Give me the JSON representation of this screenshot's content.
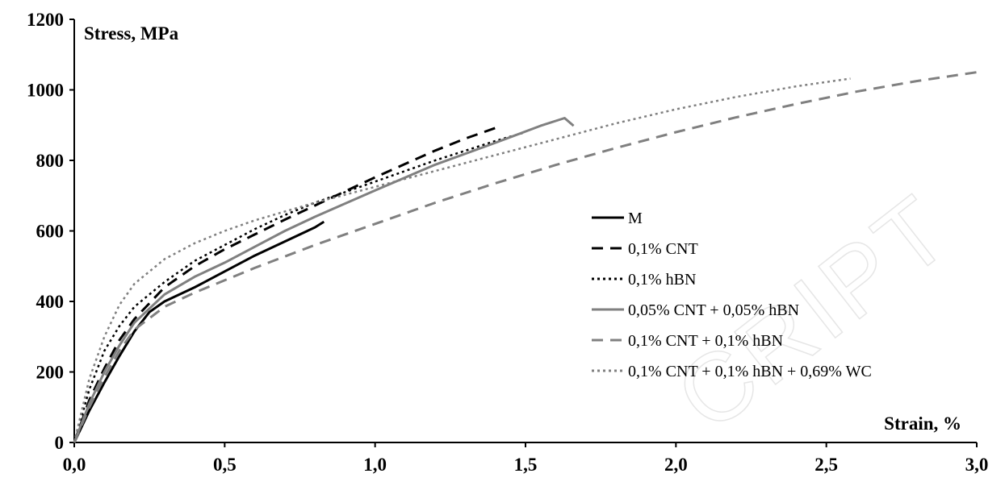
{
  "watermark": "CRIPT",
  "chart_data": {
    "type": "line",
    "title": "",
    "xlabel": "Strain, %",
    "ylabel": "Stress, MPa",
    "xlim": [
      0,
      3
    ],
    "ylim": [
      0,
      1200
    ],
    "xticks": [
      {
        "value": 0,
        "label": "0,0"
      },
      {
        "value": 0.5,
        "label": "0,5"
      },
      {
        "value": 1.0,
        "label": "1,0"
      },
      {
        "value": 1.5,
        "label": "1,5"
      },
      {
        "value": 2.0,
        "label": "2,0"
      },
      {
        "value": 2.5,
        "label": "2,5"
      },
      {
        "value": 3.0,
        "label": "3,0"
      }
    ],
    "yticks": [
      {
        "value": 0,
        "label": "0"
      },
      {
        "value": 200,
        "label": "200"
      },
      {
        "value": 400,
        "label": "400"
      },
      {
        "value": 600,
        "label": "600"
      },
      {
        "value": 800,
        "label": "800"
      },
      {
        "value": 1000,
        "label": "1000"
      },
      {
        "value": 1200,
        "label": "1200"
      }
    ],
    "grid": false,
    "legend_position": "right",
    "series": [
      {
        "name": "M",
        "color": "#000000",
        "dash": "solid",
        "points": [
          [
            0,
            0
          ],
          [
            0.05,
            90
          ],
          [
            0.1,
            170
          ],
          [
            0.15,
            245
          ],
          [
            0.2,
            315
          ],
          [
            0.25,
            370
          ],
          [
            0.3,
            400
          ],
          [
            0.4,
            440
          ],
          [
            0.5,
            485
          ],
          [
            0.6,
            530
          ],
          [
            0.7,
            570
          ],
          [
            0.8,
            610
          ],
          [
            0.83,
            626
          ]
        ]
      },
      {
        "name": "0,1% CNT",
        "color": "#000000",
        "dash": "dashed",
        "points": [
          [
            0,
            0
          ],
          [
            0.05,
            120
          ],
          [
            0.1,
            210
          ],
          [
            0.15,
            290
          ],
          [
            0.2,
            350
          ],
          [
            0.3,
            440
          ],
          [
            0.4,
            500
          ],
          [
            0.5,
            548
          ],
          [
            0.6,
            590
          ],
          [
            0.7,
            632
          ],
          [
            0.8,
            672
          ],
          [
            0.9,
            712
          ],
          [
            1.0,
            752
          ],
          [
            1.1,
            790
          ],
          [
            1.2,
            828
          ],
          [
            1.3,
            862
          ],
          [
            1.4,
            892
          ]
        ]
      },
      {
        "name": "0,1% hBN",
        "color": "#000000",
        "dash": "dotted",
        "points": [
          [
            0,
            0
          ],
          [
            0.05,
            150
          ],
          [
            0.1,
            260
          ],
          [
            0.15,
            330
          ],
          [
            0.2,
            385
          ],
          [
            0.3,
            455
          ],
          [
            0.4,
            515
          ],
          [
            0.5,
            560
          ],
          [
            0.6,
            605
          ],
          [
            0.7,
            645
          ],
          [
            0.8,
            680
          ],
          [
            1.0,
            740
          ],
          [
            1.2,
            800
          ],
          [
            1.4,
            855
          ],
          [
            1.5,
            880
          ]
        ]
      },
      {
        "name": "0,05% CNT + 0,05% hBN",
        "color": "#808080",
        "dash": "solid",
        "points": [
          [
            0,
            0
          ],
          [
            0.05,
            110
          ],
          [
            0.1,
            200
          ],
          [
            0.15,
            275
          ],
          [
            0.2,
            340
          ],
          [
            0.3,
            420
          ],
          [
            0.4,
            470
          ],
          [
            0.5,
            510
          ],
          [
            0.6,
            555
          ],
          [
            0.7,
            600
          ],
          [
            0.8,
            640
          ],
          [
            1.0,
            715
          ],
          [
            1.2,
            788
          ],
          [
            1.4,
            850
          ],
          [
            1.55,
            898
          ],
          [
            1.63,
            920
          ],
          [
            1.66,
            898
          ]
        ]
      },
      {
        "name": "0,1% CNT + 0,1% hBN",
        "color": "#808080",
        "dash": "dashed",
        "points": [
          [
            0,
            0
          ],
          [
            0.05,
            100
          ],
          [
            0.1,
            185
          ],
          [
            0.15,
            260
          ],
          [
            0.2,
            320
          ],
          [
            0.3,
            385
          ],
          [
            0.4,
            425
          ],
          [
            0.5,
            460
          ],
          [
            0.6,
            495
          ],
          [
            0.8,
            560
          ],
          [
            1.0,
            620
          ],
          [
            1.2,
            680
          ],
          [
            1.4,
            735
          ],
          [
            1.6,
            787
          ],
          [
            1.8,
            835
          ],
          [
            2.0,
            880
          ],
          [
            2.2,
            922
          ],
          [
            2.4,
            960
          ],
          [
            2.6,
            995
          ],
          [
            2.8,
            1025
          ],
          [
            3.0,
            1050
          ]
        ]
      },
      {
        "name": "0,1% CNT + 0,1% hBN + 0,69% WC",
        "color": "#808080",
        "dash": "dotted",
        "points": [
          [
            0,
            0
          ],
          [
            0.05,
            180
          ],
          [
            0.1,
            300
          ],
          [
            0.15,
            390
          ],
          [
            0.2,
            450
          ],
          [
            0.3,
            520
          ],
          [
            0.4,
            565
          ],
          [
            0.5,
            600
          ],
          [
            0.6,
            630
          ],
          [
            0.8,
            680
          ],
          [
            1.0,
            725
          ],
          [
            1.2,
            770
          ],
          [
            1.4,
            815
          ],
          [
            1.6,
            860
          ],
          [
            1.8,
            905
          ],
          [
            2.0,
            945
          ],
          [
            2.2,
            980
          ],
          [
            2.4,
            1010
          ],
          [
            2.58,
            1032
          ]
        ]
      }
    ]
  }
}
